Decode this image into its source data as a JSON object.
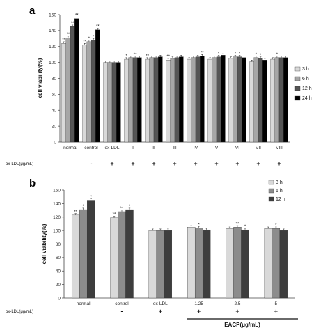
{
  "chart_data": [
    {
      "panel": "a",
      "type": "bar",
      "ylabel": "cell viability(%)",
      "ylim": [
        0,
        160
      ],
      "yticks": [
        0,
        20,
        40,
        60,
        80,
        100,
        120,
        140,
        160
      ],
      "categories": [
        "normal",
        "control",
        "ox-LDL",
        "I",
        "II",
        "III",
        "IV",
        "V",
        "VI",
        "VII",
        "VIII"
      ],
      "row_label": "ox-LDL(μg/mL)",
      "row_signs": [
        "",
        "-",
        "+",
        "+",
        "+",
        "+",
        "+",
        "+",
        "+",
        "+",
        "+"
      ],
      "legend_position": "right",
      "series": [
        {
          "name": "3 h",
          "color": "#d9d9d9",
          "values": [
            124,
            122,
            100,
            104,
            104,
            103,
            104,
            104,
            105,
            101,
            104
          ],
          "stars": [
            "**",
            "**",
            "",
            "*",
            "**",
            "**",
            "",
            "",
            "",
            "",
            ""
          ]
        },
        {
          "name": "6 h",
          "color": "#a6a6a6",
          "values": [
            131,
            126,
            100,
            106,
            106,
            105,
            106,
            106,
            107,
            106,
            106
          ],
          "stars": [
            "**",
            "*",
            "",
            "",
            "",
            "",
            "",
            "",
            "*",
            "*",
            "*"
          ]
        },
        {
          "name": "12 h",
          "color": "#555555",
          "values": [
            145,
            128,
            100,
            106,
            106,
            106,
            107,
            107,
            107,
            105,
            106
          ],
          "stars": [
            "**",
            "*",
            "",
            "**",
            "",
            "",
            "",
            "*",
            "*",
            "*",
            ""
          ]
        },
        {
          "name": "24 h",
          "color": "#000000",
          "values": [
            155,
            141,
            100,
            106,
            107,
            107,
            108,
            109,
            106,
            103,
            106
          ],
          "stars": [
            "**",
            "**",
            "",
            "",
            "",
            "",
            "**",
            "",
            "",
            "",
            ""
          ]
        }
      ]
    },
    {
      "panel": "b",
      "type": "bar",
      "ylabel": "cell viability(%)",
      "ylim": [
        0,
        160
      ],
      "yticks": [
        0,
        20,
        40,
        60,
        80,
        100,
        120,
        140,
        160
      ],
      "categories": [
        "normal",
        "control",
        "ox-LDL",
        "1.25",
        "2.5",
        "5"
      ],
      "row_label": "ox-LDL(μg/mL)",
      "row_signs": [
        "",
        "-",
        "+",
        "+",
        "+",
        "+"
      ],
      "group_label": "EACP(μg/mL)",
      "legend_position": "top-right",
      "series": [
        {
          "name": "3 h",
          "color": "#d9d9d9",
          "values": [
            123,
            119,
            100,
            105,
            103,
            103
          ],
          "stars": [
            "**",
            "**",
            "",
            "",
            "",
            ""
          ]
        },
        {
          "name": "6 h",
          "color": "#8c8c8c",
          "values": [
            131,
            128,
            100,
            104,
            105,
            103
          ],
          "stars": [
            "*",
            "**",
            "",
            "*",
            "**",
            "*"
          ]
        },
        {
          "name": "12 h",
          "color": "#3d3d3d",
          "values": [
            145,
            131,
            100,
            101,
            101,
            100
          ],
          "stars": [
            "*",
            "*",
            "",
            "",
            "*",
            ""
          ]
        }
      ]
    }
  ],
  "labels": {
    "panel_a": "a",
    "panel_b": "b"
  }
}
